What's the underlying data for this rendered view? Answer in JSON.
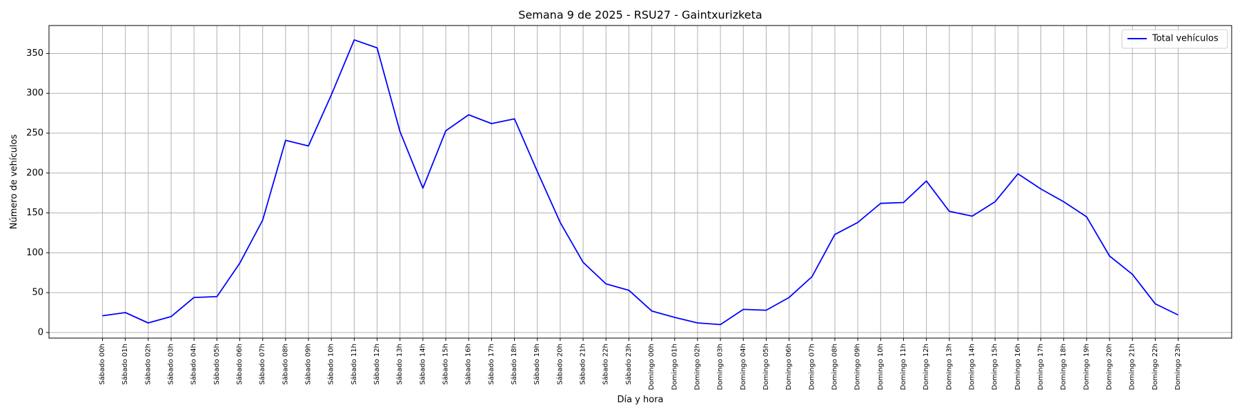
{
  "chart_data": {
    "type": "line",
    "title": "Semana 9 de 2025 - RSU27 - Gaintxurizketa",
    "xlabel": "Día y hora",
    "ylabel": "Número de vehículos",
    "ylim": [
      -7,
      385
    ],
    "yticks": [
      0,
      50,
      100,
      150,
      200,
      250,
      300,
      350
    ],
    "grid": true,
    "legend": "top-right",
    "categories": [
      "Sábado 00h",
      "Sábado 01h",
      "Sábado 02h",
      "Sábado 03h",
      "Sábado 04h",
      "Sábado 05h",
      "Sábado 06h",
      "Sábado 07h",
      "Sábado 08h",
      "Sábado 09h",
      "Sábado 10h",
      "Sábado 11h",
      "Sábado 12h",
      "Sábado 13h",
      "Sábado 14h",
      "Sábado 15h",
      "Sábado 16h",
      "Sábado 17h",
      "Sábado 18h",
      "Sábado 19h",
      "Sábado 20h",
      "Sábado 21h",
      "Sábado 22h",
      "Sábado 23h",
      "Domingo 00h",
      "Domingo 01h",
      "Domingo 02h",
      "Domingo 03h",
      "Domingo 04h",
      "Domingo 05h",
      "Domingo 06h",
      "Domingo 07h",
      "Domingo 08h",
      "Domingo 09h",
      "Domingo 10h",
      "Domingo 11h",
      "Domingo 12h",
      "Domingo 13h",
      "Domingo 14h",
      "Domingo 15h",
      "Domingo 16h",
      "Domingo 17h",
      "Domingo 18h",
      "Domingo 19h",
      "Domingo 20h",
      "Domingo 21h",
      "Domingo 22h",
      "Domingo 23h"
    ],
    "series": [
      {
        "name": "Total vehículos",
        "color": "#0000ff",
        "values": [
          21,
          25,
          12,
          20,
          44,
          45,
          87,
          141,
          241,
          234,
          298,
          367,
          357,
          252,
          181,
          253,
          273,
          262,
          268,
          202,
          138,
          88,
          61,
          53,
          27,
          19,
          12,
          10,
          29,
          28,
          44,
          70,
          123,
          138,
          162,
          163,
          190,
          152,
          146,
          164,
          199,
          180,
          164,
          145,
          96,
          73,
          36,
          22
        ]
      }
    ]
  }
}
